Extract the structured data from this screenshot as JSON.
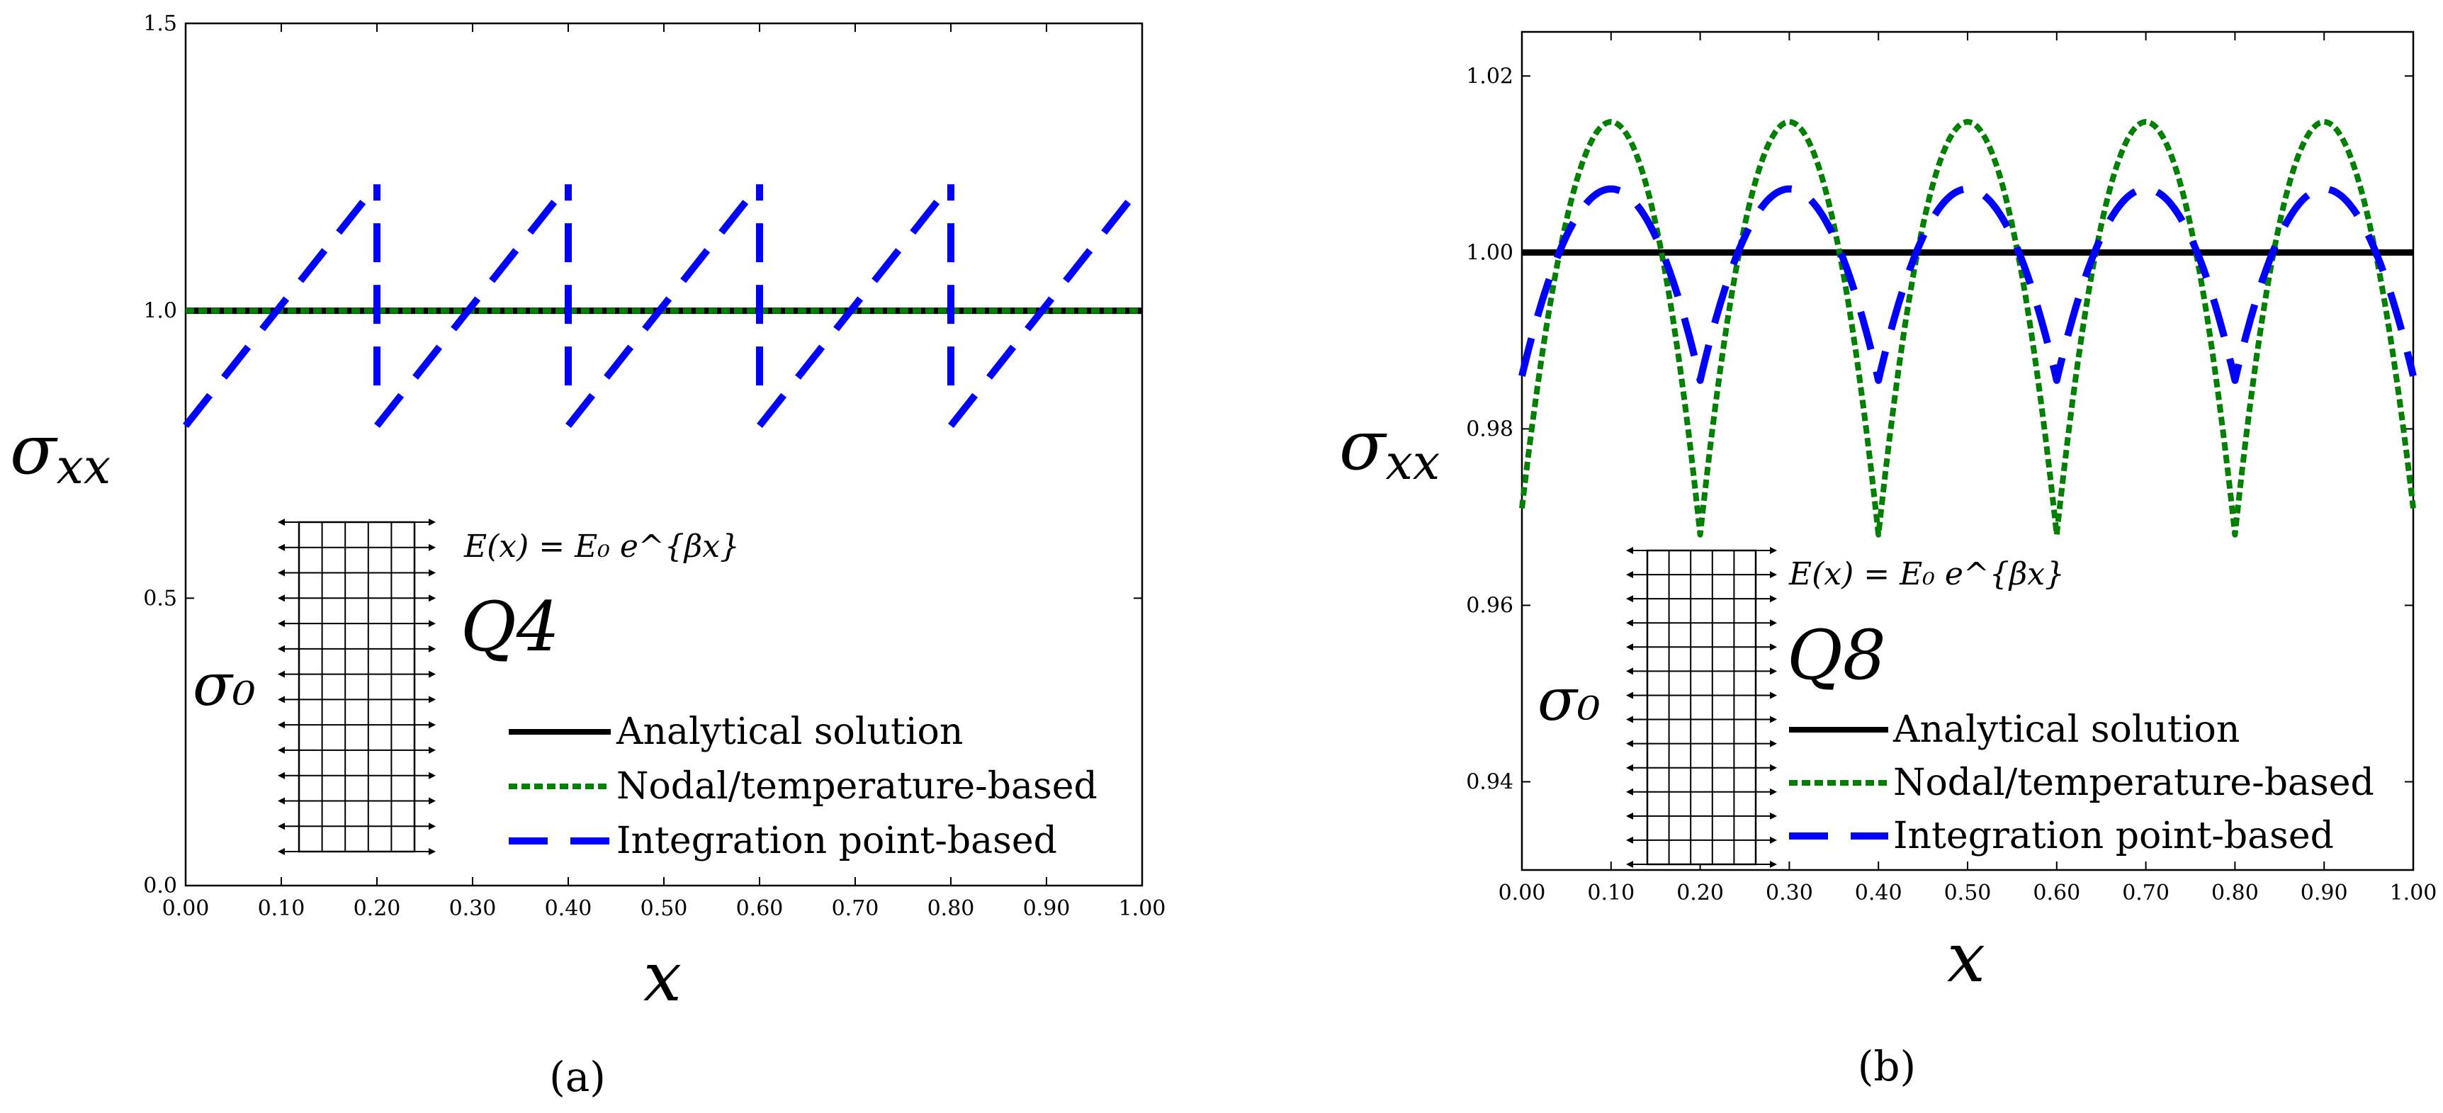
{
  "chart_data": [
    {
      "type": "line",
      "panel": "(a)",
      "ylabel_main": "σ",
      "ylabel_sub": "xx",
      "xlabel": "x",
      "xlim": [
        0,
        1
      ],
      "ylim": [
        0,
        1.5
      ],
      "x_ticks": [
        "0.00",
        "0.10",
        "0.20",
        "0.30",
        "0.40",
        "0.50",
        "0.60",
        "0.70",
        "0.80",
        "0.90",
        "1.00"
      ],
      "y_ticks": [
        "0.0",
        "0.5",
        "1.0",
        "1.5"
      ],
      "y_tick_values": [
        0,
        0.5,
        1.0,
        1.5
      ],
      "element_label": "Q4",
      "equation": "E(x) = E₀ e^{βx}",
      "sigma0": "σ₀",
      "legend": [
        "Analytical solution",
        "Nodal/temperature-based",
        "Integration point-based"
      ],
      "series": [
        {
          "name": "Analytical solution",
          "style": "solid",
          "color": "#000000",
          "x": [
            0,
            1
          ],
          "y": [
            1.0,
            1.0
          ]
        },
        {
          "name": "Nodal/temperature-based",
          "style": "dotted",
          "color": "#008000",
          "x": [
            0,
            1
          ],
          "y": [
            1.0,
            1.0
          ]
        },
        {
          "name": "Integration point-based",
          "style": "dashed",
          "color": "#0000ff",
          "segments": [
            {
              "x": [
                0.0,
                0.2
              ],
              "y": [
                0.8,
                1.22
              ]
            },
            {
              "x": [
                0.2,
                0.4
              ],
              "y": [
                0.8,
                1.22
              ]
            },
            {
              "x": [
                0.4,
                0.6
              ],
              "y": [
                0.8,
                1.22
              ]
            },
            {
              "x": [
                0.6,
                0.8
              ],
              "y": [
                0.8,
                1.22
              ]
            },
            {
              "x": [
                0.8,
                1.0
              ],
              "y": [
                0.8,
                1.22
              ]
            },
            {
              "x": [
                0.2,
                0.2
              ],
              "y": [
                0.87,
                1.22
              ]
            },
            {
              "x": [
                0.4,
                0.4
              ],
              "y": [
                0.87,
                1.22
              ]
            },
            {
              "x": [
                0.6,
                0.6
              ],
              "y": [
                0.87,
                1.22
              ]
            },
            {
              "x": [
                0.8,
                0.8
              ],
              "y": [
                0.87,
                1.22
              ]
            }
          ]
        }
      ]
    },
    {
      "type": "line",
      "panel": "(b)",
      "ylabel_main": "σ",
      "ylabel_sub": "xx",
      "xlabel": "x",
      "xlim": [
        0,
        1
      ],
      "ylim": [
        0.93,
        1.025
      ],
      "x_ticks": [
        "0.00",
        "0.10",
        "0.20",
        "0.30",
        "0.40",
        "0.50",
        "0.60",
        "0.70",
        "0.80",
        "0.90",
        "1.00"
      ],
      "y_ticks": [
        "0.94",
        "0.96",
        "0.98",
        "1.00",
        "1.02"
      ],
      "y_tick_values": [
        0.94,
        0.96,
        0.98,
        1.0,
        1.02
      ],
      "element_label": "Q8",
      "equation": "E(x) = E₀ e^{βx}",
      "sigma0": "σ₀",
      "legend": [
        "Analytical solution",
        "Nodal/temperature-based",
        "Integration point-based"
      ],
      "series": [
        {
          "name": "Analytical solution",
          "style": "solid",
          "color": "#000000",
          "x": [
            0,
            1
          ],
          "y": [
            1.0,
            1.0
          ]
        },
        {
          "name": "Nodal/temperature-based",
          "style": "dotted",
          "color": "#008000",
          "shape": "parabolic arch per element",
          "element_size": 0.2,
          "y_peak": 1.0148,
          "y_edge": 0.968,
          "y_ends": 0.971
        },
        {
          "name": "Integration point-based",
          "style": "dashed",
          "color": "#0000ff",
          "shape": "parabolic arch per element",
          "element_size": 0.2,
          "y_peak": 1.0072,
          "y_edge": 0.9855,
          "y_ends": 0.986
        }
      ]
    }
  ],
  "captions": {
    "a": "(a)",
    "b": "(b)"
  }
}
